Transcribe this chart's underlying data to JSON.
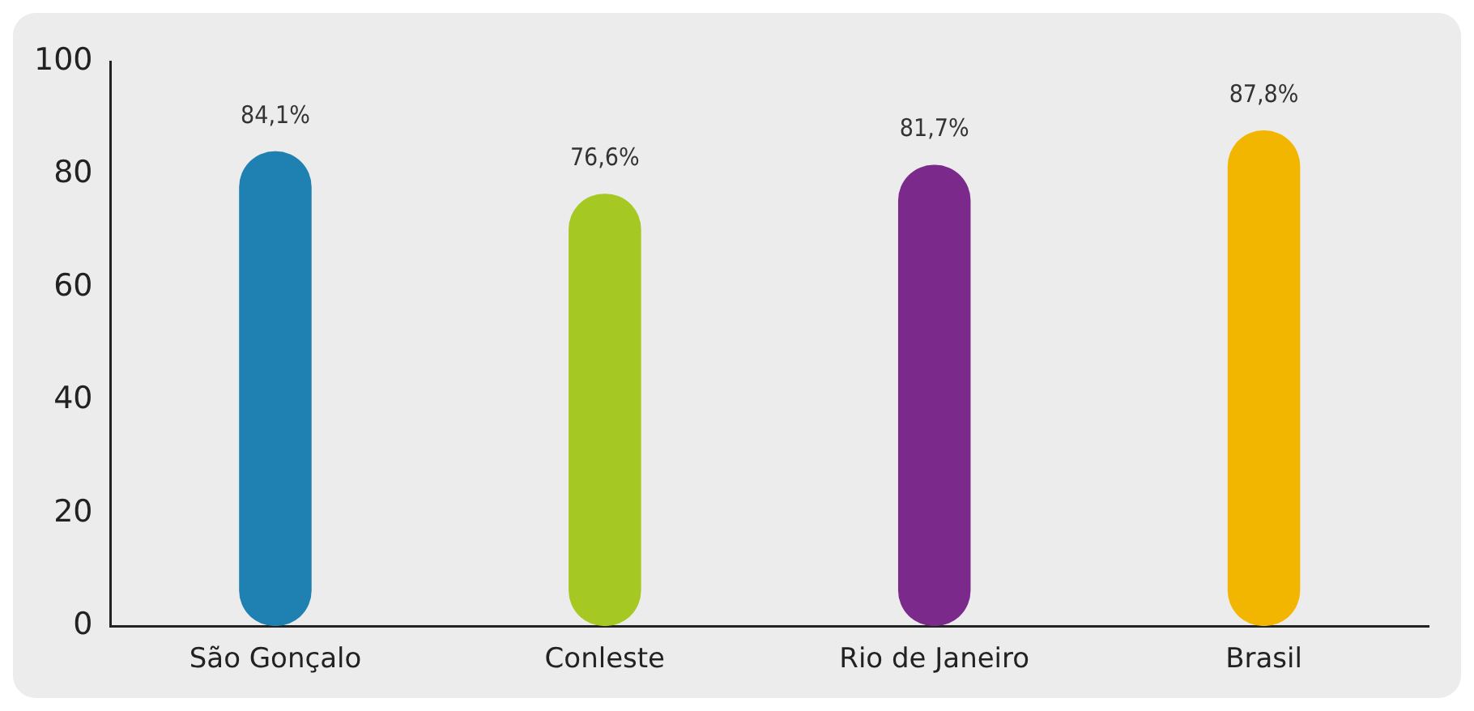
{
  "chart_data": {
    "type": "bar",
    "categories": [
      "São Gonçalo",
      "Conleste",
      "Rio de Janeiro",
      "Brasil"
    ],
    "values": [
      84.1,
      76.6,
      81.7,
      87.8
    ],
    "colors": [
      "#1f80b2",
      "#a6c822",
      "#7b2a8c",
      "#f2b600"
    ],
    "value_labels": [
      "84,1%",
      "76,6%",
      "81,7%",
      "87,8%"
    ],
    "ylim": [
      0,
      100
    ],
    "yticks": [
      0,
      20,
      40,
      60,
      80,
      100
    ],
    "grid": false,
    "legend": false
  }
}
